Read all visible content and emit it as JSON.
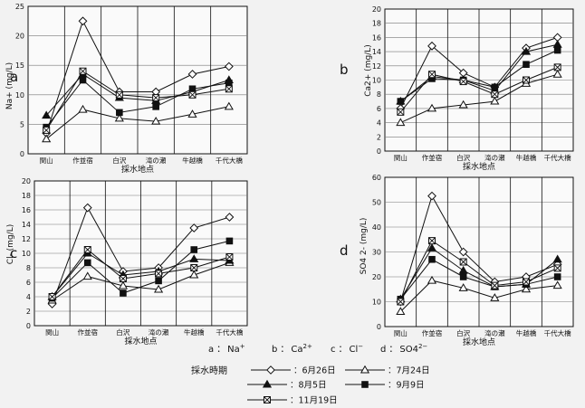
{
  "chart_data": [
    {
      "type": "line",
      "panel_label": "a",
      "ylabel": "Na+ (mg/L)",
      "xlabel": "採水地点",
      "ylim": [
        0,
        25
      ],
      "yticks": [
        0,
        5,
        10,
        15,
        20,
        25
      ],
      "grid": true,
      "categories": [
        "関山",
        "作並宿",
        "白沢",
        "滝の瀬",
        "牛越橋",
        "千代大橋"
      ],
      "series": [
        {
          "name": "6月26日",
          "values": [
            3.5,
            22.5,
            10.5,
            10.5,
            13.5,
            14.8
          ]
        },
        {
          "name": "7月24日",
          "values": [
            2.5,
            7.5,
            6.0,
            5.5,
            6.7,
            8.0
          ]
        },
        {
          "name": "8月5日",
          "values": [
            6.5,
            13.5,
            9.5,
            9.0,
            10.5,
            12.5
          ]
        },
        {
          "name": "9月9日",
          "values": [
            4.5,
            12.5,
            7.0,
            8.0,
            11.0,
            12.0
          ]
        },
        {
          "name": "11月19日",
          "values": [
            4.0,
            14.0,
            10.0,
            9.5,
            10.0,
            11.0
          ]
        }
      ]
    },
    {
      "type": "line",
      "panel_label": "b",
      "ylabel": "Ca2+ (mg/L)",
      "xlabel": "採水地点",
      "ylim": [
        0,
        20
      ],
      "yticks": [
        0,
        2,
        4,
        6,
        8,
        10,
        12,
        14,
        16,
        18,
        20
      ],
      "grid": true,
      "categories": [
        "関山",
        "作並宿",
        "白沢",
        "滝の瀬",
        "牛越橋",
        "千代大橋"
      ],
      "series": [
        {
          "name": "6月26日",
          "values": [
            6.0,
            14.8,
            11.0,
            9.0,
            14.5,
            16.0
          ]
        },
        {
          "name": "7月24日",
          "values": [
            4.0,
            6.0,
            6.5,
            7.0,
            9.5,
            10.8
          ]
        },
        {
          "name": "8月5日",
          "values": [
            7.0,
            10.5,
            10.0,
            8.5,
            14.0,
            15.0
          ]
        },
        {
          "name": "9月9日",
          "values": [
            7.0,
            10.2,
            10.0,
            9.0,
            12.2,
            14.2
          ]
        },
        {
          "name": "11月19日",
          "values": [
            5.5,
            10.8,
            9.8,
            8.0,
            10.0,
            11.8
          ]
        }
      ]
    },
    {
      "type": "line",
      "panel_label": "c",
      "ylabel": "Cl- (mg/L)",
      "xlabel": "採水地点",
      "ylim": [
        0,
        20
      ],
      "yticks": [
        0,
        2,
        4,
        6,
        8,
        10,
        12,
        14,
        16,
        18,
        20
      ],
      "grid": true,
      "categories": [
        "関山",
        "作並宿",
        "白沢",
        "滝の瀬",
        "牛越橋",
        "千代大橋"
      ],
      "series": [
        {
          "name": "6月26日",
          "values": [
            3.0,
            16.3,
            7.5,
            8.0,
            13.5,
            15.0
          ]
        },
        {
          "name": "7月24日",
          "values": [
            3.5,
            6.8,
            5.5,
            5.0,
            7.0,
            8.7
          ]
        },
        {
          "name": "8月5日",
          "values": [
            4.0,
            10.0,
            7.0,
            7.5,
            9.2,
            9.0
          ]
        },
        {
          "name": "9月9日",
          "values": [
            3.8,
            8.7,
            4.5,
            6.2,
            10.5,
            11.7
          ]
        },
        {
          "name": "11月19日",
          "values": [
            4.0,
            10.5,
            6.5,
            7.2,
            8.0,
            9.5
          ]
        }
      ]
    },
    {
      "type": "line",
      "panel_label": "d",
      "ylabel": "SO4 2- (mg/L)",
      "xlabel": "採水地点",
      "ylim": [
        0,
        60
      ],
      "yticks": [
        0,
        10,
        20,
        30,
        40,
        50,
        60
      ],
      "grid": true,
      "categories": [
        "関山",
        "作並宿",
        "白沢",
        "滝の瀬",
        "牛越橋",
        "千代大橋"
      ],
      "series": [
        {
          "name": "6月26日",
          "values": [
            10.0,
            52.5,
            30.0,
            18.0,
            20.0,
            25.0
          ]
        },
        {
          "name": "7月24日",
          "values": [
            6.0,
            18.5,
            15.5,
            11.5,
            15.0,
            16.5
          ]
        },
        {
          "name": "8月5日",
          "values": [
            11.0,
            31.5,
            22.5,
            16.0,
            17.0,
            27.0
          ]
        },
        {
          "name": "9月9日",
          "values": [
            11.0,
            27.0,
            20.0,
            16.0,
            17.0,
            20.0
          ]
        },
        {
          "name": "11月19日",
          "values": [
            10.0,
            34.5,
            26.0,
            16.5,
            18.0,
            23.5
          ]
        }
      ]
    }
  ],
  "ion_key": {
    "a": {
      "letter": "a",
      "sep": "：",
      "ion": "Na",
      "charge": "+"
    },
    "b": {
      "letter": "b",
      "sep": "：",
      "ion": "Ca",
      "charge": "2+"
    },
    "c": {
      "letter": "c",
      "sep": "：",
      "ion": "Cl",
      "charge": "−"
    },
    "d": {
      "letter": "d",
      "sep": "：",
      "ion": "SO4",
      "charge": "2−"
    }
  },
  "legend": {
    "title": "採水時期",
    "items": [
      {
        "label": "：6月26日",
        "marker": "diamond-open"
      },
      {
        "label": "：7月24日",
        "marker": "triangle-open"
      },
      {
        "label": "：8月5日",
        "marker": "triangle-filled"
      },
      {
        "label": "：9月9日",
        "marker": "square-filled"
      },
      {
        "label": "：11月19日",
        "marker": "square-crossed"
      }
    ]
  }
}
